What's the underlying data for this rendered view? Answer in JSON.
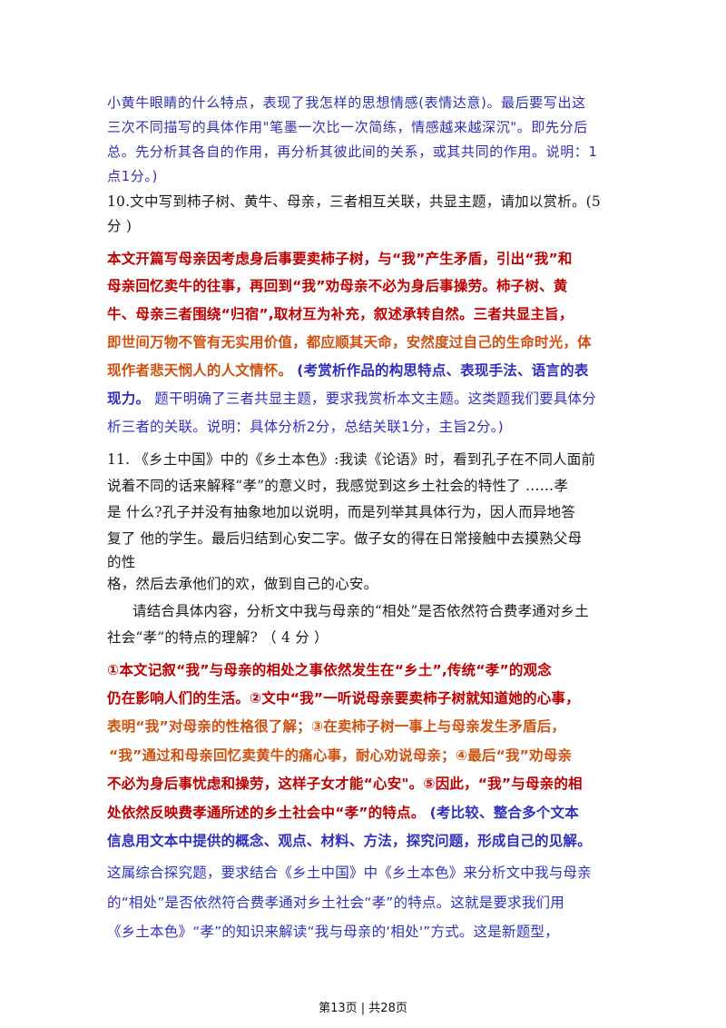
{
  "section9_note": [
    "小黄牛眼睛的什么特点，表现了我怎样的思想情感(表情达意)。最后要写出这",
    "三次不同描写的具体作用\"笔墨一次比一次简练，情感越来越深沉\"。即先分后",
    "总。先分析其各自的作用，再分析其彼此间的关系，或其共同的作用。说明：1",
    "点1分。)"
  ],
  "q10": {
    "question": [
      "10.文中写到柿子树、黄牛、母亲，三者相互关联，共显主题，请加以赏析。(5",
      "分 )"
    ],
    "answer_red": [
      "本文开篇写母亲因考虑身后事要卖柿子树，与“我”产生矛盾，引出“我”和",
      "母亲回忆卖牛的往事，再回到“我”劝母亲不必为身后事操劳。柿子树、黄",
      "牛、母亲三者围绕“归宿”,取材互为补充，叙述承转自然。三者共显主旨，"
    ],
    "answer_orange": [
      "即世间万物不管有无实用价值，都应顺其天命，安然度过自己的生命时光，体",
      "现作者悲天悯人的人文情怀。"
    ],
    "note_bold": "(考赏析作品的构思特点、表现手法、语言的表",
    "note_bold2": "现力。",
    "note_lines": [
      "题干明确了三者共显主题，要求我赏析本文主题。这类题我们要具体分",
      "析三者的关联。说明：具体分析2分，总结关联1分，主旨2分。)"
    ]
  },
  "q11": {
    "stem": [
      "11.  《乡土中国》中的《乡土本色》:我读《论语》时，看到孔子在不同人面前",
      "说着不同的话来解释“孝”的意义时，我感觉到这乡土社会的特性了 ……孝",
      "是  什么?孔子并没有抽象地加以说明，而是列举其具体行为，因人而异地答",
      "复了  他的学生。最后归结到心安二字。做子女的得在日常接触中去摸熟父母",
      "的性",
      "格，然后去承他们的欢，做到自己的心安。"
    ],
    "question": [
      "请结合具体内容，分析文中我与母亲的“相处”是否依然符合费孝通对乡土",
      "社会“孝”的特点的理解?  （ 4  分 ）"
    ],
    "answer_red_1": [
      "①本文记叙“我”与母亲的相处之事依然发生在“乡土”,传统“孝”的观念",
      "仍在影响人们的生活。②文中“我”一听说母亲要卖柿子树就知道她的心事，"
    ],
    "answer_orange": [
      "表明“我”对母亲的性格很了解；③在卖柿子树一事上与母亲发生矛盾后，",
      "“我”通过和母亲回忆卖黄牛的痛心事，耐心劝说母亲；④最后“我”劝母亲"
    ],
    "answer_red_2": [
      "不必为身后事忧虑和操劳，这样子女才能“心安\"。⑤因此，“我”与母亲的相",
      "处依然反映费孝通所述的乡土社会中“孝”的特点。"
    ],
    "note_bold": "(考比较、整合多个文本",
    "note_bold_line": "信息用文本中提供的概念、观点、材料、方法，探究问题，形成自己的见解。",
    "note_lines": [
      "这属综合探究题，要求结合《乡土中国》中《乡土本色》来分析文中我与母亲",
      "的“相处”是否依然符合费孝通对乡土社会“孝”的特点。这就是要求我们用",
      "《乡土本色》“孝”的知识来解读“我与母亲的‘相处'”方式。这是新题型，"
    ]
  },
  "footer": {
    "page_text": "第13页 | 共28页"
  }
}
